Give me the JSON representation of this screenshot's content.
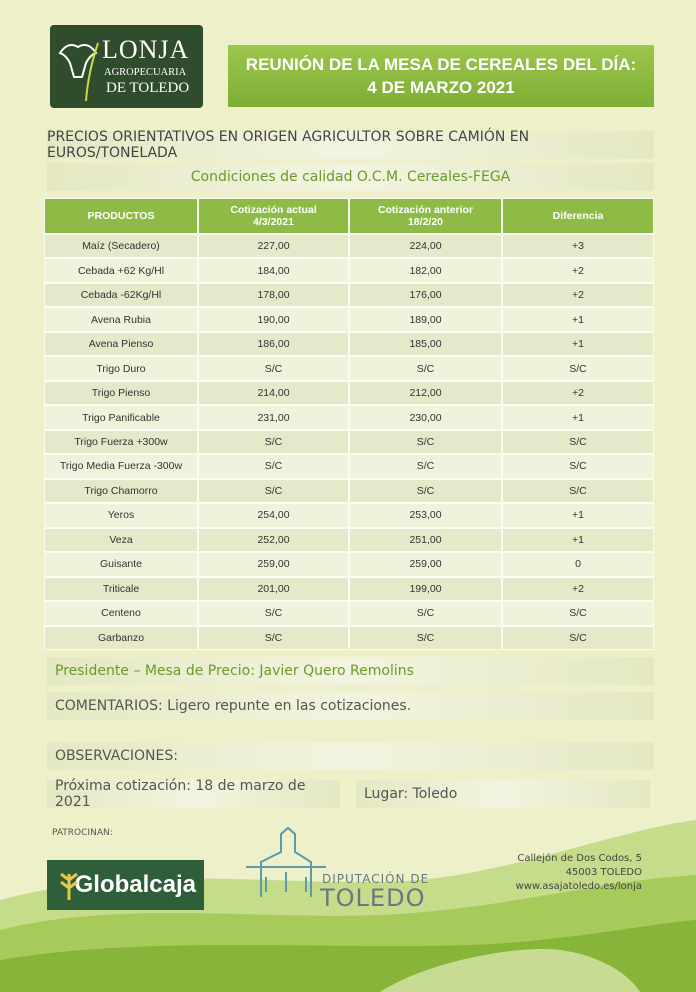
{
  "header": {
    "logo": {
      "line1": "LONJA",
      "line2": "AGROPECUARIA",
      "line3": "DE TOLEDO"
    },
    "title": "REUNIÓN DE LA MESA DE CEREALES DEL DÍA: 4 DE MARZO 2021"
  },
  "subtitle": "PRECIOS ORIENTATIVOS EN ORIGEN AGRICULTOR SOBRE CAMIÓN EN EUROS/TONELADA",
  "conditions": "Condiciones de calidad O.C.M. Cereales-FEGA",
  "table": {
    "columns": [
      {
        "label": "PRODUCTOS"
      },
      {
        "label": "Cotización actual",
        "date": "4/3/2021"
      },
      {
        "label": "Cotización anterior",
        "date": "18/2/20"
      },
      {
        "label": "Diferencia"
      }
    ],
    "rows": [
      [
        "Maíz (Secadero)",
        "227,00",
        "224,00",
        "+3"
      ],
      [
        "Cebada +62 Kg/Hl",
        "184,00",
        "182,00",
        "+2"
      ],
      [
        "Cebada -62Kg/Hl",
        "178,00",
        "176,00",
        "+2"
      ],
      [
        "Avena Rubia",
        "190,00",
        "189,00",
        "+1"
      ],
      [
        "Avena Pienso",
        "186,00",
        "185,00",
        "+1"
      ],
      [
        "Trigo Duro",
        "S/C",
        "S/C",
        "S/C"
      ],
      [
        "Trigo Pienso",
        "214,00",
        "212,00",
        "+2"
      ],
      [
        "Trigo Panificable",
        "231,00",
        "230,00",
        "+1"
      ],
      [
        "Trigo Fuerza +300w",
        "S/C",
        "S/C",
        "S/C"
      ],
      [
        "Trigo Media Fuerza -300w",
        "S/C",
        "S/C",
        "S/C"
      ],
      [
        "Trigo Chamorro",
        "S/C",
        "S/C",
        "S/C"
      ],
      [
        "Yeros",
        "254,00",
        "253,00",
        "+1"
      ],
      [
        "Veza",
        "252,00",
        "251,00",
        "+1"
      ],
      [
        "Guisante",
        "259,00",
        "259,00",
        "0"
      ],
      [
        "Triticale",
        "201,00",
        "199,00",
        "+2"
      ],
      [
        "Centeno",
        "S/C",
        "S/C",
        "S/C"
      ],
      [
        "Garbanzo",
        "S/C",
        "S/C",
        "S/C"
      ]
    ]
  },
  "president": "Presidente – Mesa de Precio: Javier Quero Remolins",
  "comments": "COMENTARIOS: Ligero repunte en las cotizaciones.",
  "observations": "OBSERVACIONES:",
  "next_quote": "Próxima cotización: 18 de marzo de 2021",
  "place": "Lugar: Toledo",
  "footer": {
    "sponsors_label": "PATROCINAN:",
    "sponsor": "Globalcaja",
    "diputacion": {
      "line1": "DIPUTACIÓN DE",
      "line2": "TOLEDO"
    },
    "address": [
      "Callejón de Dos Codos, 5",
      "45003 TOLEDO",
      "www.asajatoledo.es/lonja"
    ]
  }
}
